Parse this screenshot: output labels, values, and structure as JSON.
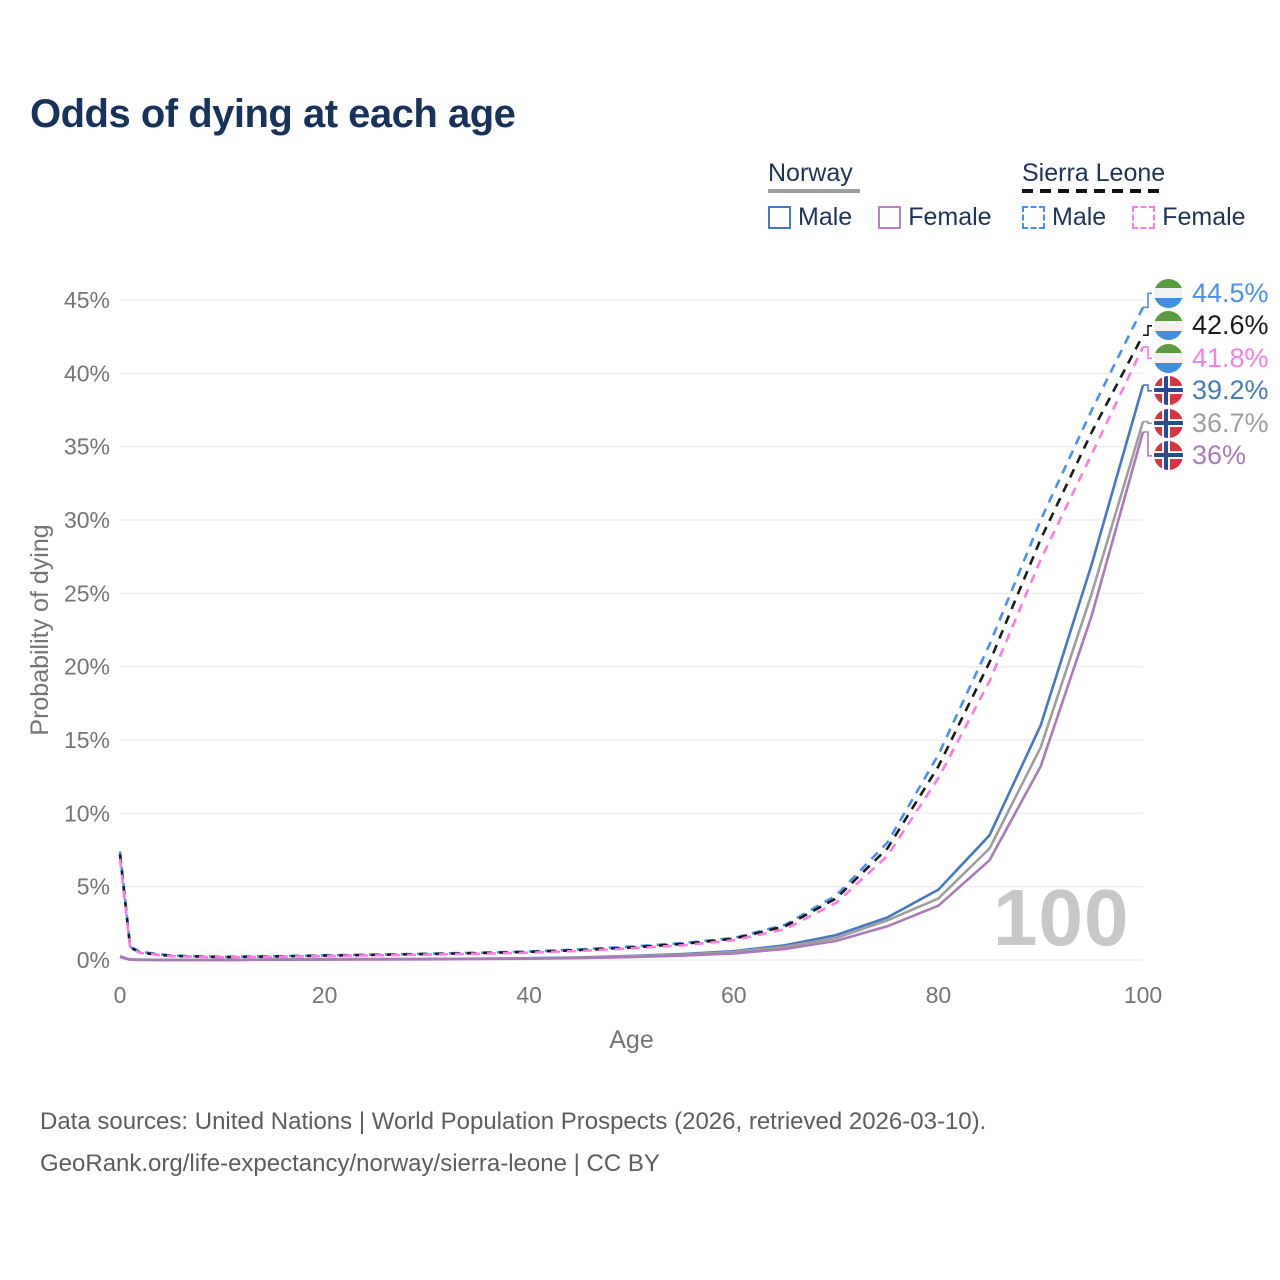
{
  "title": "Odds of dying at each age",
  "legend": {
    "groups": [
      {
        "country": "Norway",
        "line_style": "solid",
        "underline_color": "#9e9e9e",
        "items": [
          {
            "label": "Male",
            "color": "#4679c0"
          },
          {
            "label": "Female",
            "color": "#b77fc4"
          }
        ]
      },
      {
        "country": "Sierra Leone",
        "line_style": "dashed",
        "underline_color": "#1a1a1a",
        "items": [
          {
            "label": "Male",
            "color": "#4a90f2"
          },
          {
            "label": "Female",
            "color": "#fb7ce4"
          }
        ]
      }
    ]
  },
  "chart_data": {
    "type": "line",
    "title": "Odds of dying at each age",
    "xlabel": "Age",
    "ylabel": "Probability of dying",
    "xlim": [
      0,
      100
    ],
    "ylim": [
      0,
      45
    ],
    "xtick_values": [
      0,
      20,
      40,
      60,
      80,
      100
    ],
    "ytick_values": [
      0,
      5,
      10,
      15,
      20,
      25,
      30,
      35,
      40,
      45
    ],
    "ytick_suffix": "%",
    "grid": "horizontal",
    "legend_position": "top-right",
    "x": [
      0,
      1,
      2,
      5,
      10,
      15,
      20,
      25,
      30,
      35,
      40,
      45,
      50,
      55,
      60,
      65,
      70,
      75,
      80,
      85,
      90,
      95,
      100
    ],
    "series": [
      {
        "name": "Sierra Leone Male",
        "country": "Sierra Leone",
        "sex": "Male",
        "style": "dashed",
        "color": "#4a90f2",
        "flag": "sierra-leone",
        "end_label": "44.5%",
        "end_value": 44.5,
        "label_color": "#4a90f2",
        "values": [
          7.4,
          0.9,
          0.55,
          0.3,
          0.22,
          0.26,
          0.32,
          0.37,
          0.43,
          0.5,
          0.58,
          0.72,
          0.92,
          1.15,
          1.5,
          2.4,
          4.4,
          8.0,
          14.0,
          21.5,
          30.0,
          37.5,
          44.5
        ]
      },
      {
        "name": "Sierra Leone",
        "country": "Sierra Leone",
        "sex": "Both",
        "style": "dashed",
        "color": "#1a1a1a",
        "flag": "sierra-leone",
        "end_label": "42.6%",
        "end_value": 42.6,
        "label_color": "#1a1a1a",
        "values": [
          7.2,
          0.85,
          0.5,
          0.28,
          0.2,
          0.24,
          0.3,
          0.35,
          0.4,
          0.47,
          0.55,
          0.68,
          0.85,
          1.1,
          1.45,
          2.3,
          4.2,
          7.6,
          13.2,
          20.3,
          28.7,
          36.0,
          42.6
        ]
      },
      {
        "name": "Sierra Leone Female",
        "country": "Sierra Leone",
        "sex": "Female",
        "style": "dashed",
        "color": "#fb7ce4",
        "flag": "sierra-leone",
        "end_label": "41.8%",
        "end_value": 41.8,
        "label_color": "#fb7ce4",
        "values": [
          6.9,
          0.8,
          0.48,
          0.26,
          0.19,
          0.22,
          0.28,
          0.32,
          0.37,
          0.43,
          0.5,
          0.62,
          0.8,
          1.0,
          1.35,
          2.1,
          3.9,
          7.1,
          12.4,
          19.0,
          27.3,
          34.5,
          41.8
        ]
      },
      {
        "name": "Norway Male",
        "country": "Norway",
        "sex": "Male",
        "style": "solid",
        "color": "#4679c0",
        "flag": "norway",
        "end_label": "39.2%",
        "end_value": 39.2,
        "label_color": "#4679c0",
        "values": [
          0.25,
          0.03,
          0.02,
          0.01,
          0.01,
          0.03,
          0.06,
          0.06,
          0.07,
          0.09,
          0.12,
          0.18,
          0.28,
          0.4,
          0.6,
          1.0,
          1.7,
          2.9,
          4.8,
          8.5,
          16.0,
          27.0,
          39.2
        ]
      },
      {
        "name": "Norway",
        "country": "Norway",
        "sex": "Both",
        "style": "solid",
        "color": "#9e9e9e",
        "flag": "norway",
        "end_label": "36.7%",
        "end_value": 36.7,
        "label_color": "#9e9e9e",
        "values": [
          0.22,
          0.03,
          0.02,
          0.01,
          0.01,
          0.03,
          0.05,
          0.05,
          0.06,
          0.08,
          0.11,
          0.16,
          0.25,
          0.36,
          0.55,
          0.9,
          1.5,
          2.7,
          4.2,
          7.6,
          14.5,
          25.0,
          36.7
        ]
      },
      {
        "name": "Norway Female",
        "country": "Norway",
        "sex": "Female",
        "style": "solid",
        "color": "#ab7ab8",
        "flag": "norway",
        "end_label": "36%",
        "end_value": 36.0,
        "label_color": "#ab7ab8",
        "values": [
          0.2,
          0.02,
          0.01,
          0.01,
          0.01,
          0.02,
          0.03,
          0.04,
          0.05,
          0.07,
          0.09,
          0.13,
          0.2,
          0.3,
          0.45,
          0.75,
          1.3,
          2.3,
          3.7,
          6.8,
          13.2,
          23.5,
          36.0
        ]
      }
    ]
  },
  "watermark": "100",
  "footer": {
    "line1": "Data sources: United Nations | World Population Prospects (2026, retrieved 2026-03-10).",
    "line2": "GeoRank.org/life-expectancy/norway/sierra-leone | CC BY"
  },
  "icons": {
    "sierra_leone_flag": {
      "green": "#5b9c42",
      "white": "#f2f2f2",
      "blue": "#3f8fdd"
    },
    "norway_flag": {
      "red": "#d8333f",
      "blue": "#2b4a8f",
      "white": "#ffffff"
    }
  },
  "colors": {
    "title": "#17335b",
    "axis_text": "#757575",
    "gridline": "#ececec",
    "watermark": "#c8c8c8",
    "footer_text": "#5d5d5d"
  }
}
